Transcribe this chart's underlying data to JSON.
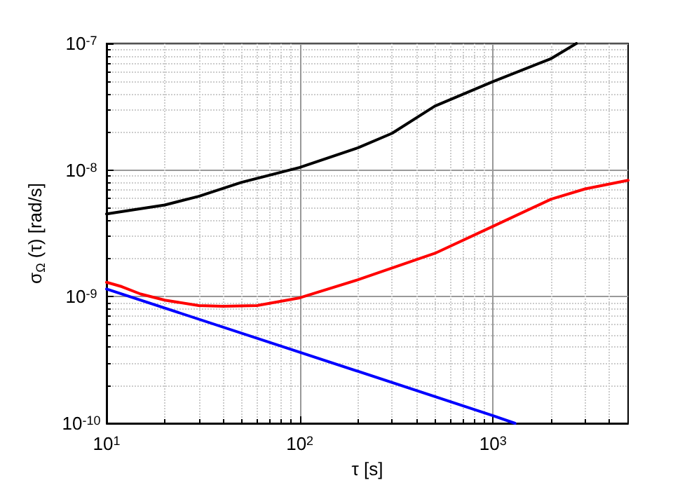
{
  "chart_data": {
    "type": "line",
    "xlabel": "τ [s]",
    "ylabel": "σ$_{Ω}$ (τ) [rad/s]",
    "log": "xy",
    "grid": true,
    "marker": "none",
    "line_style": "solid",
    "xlim": [
      10,
      5000
    ],
    "xticks": [
      {
        "value": 10,
        "label": "10$^{1}$"
      },
      {
        "value": 100,
        "label": "10$^{2}$"
      },
      {
        "value": 1000,
        "label": "10$^{3}$"
      }
    ],
    "ylim": [
      1e-10,
      1e-07
    ],
    "yticks": [
      {
        "value": 1e-10,
        "label": "10$^{-10}$"
      },
      {
        "value": 1e-09,
        "label": "10$^{-9}$"
      },
      {
        "value": 1e-08,
        "label": "10$^{-8}$"
      },
      {
        "value": 1e-07,
        "label": "10$^{-7}$"
      }
    ],
    "series": [
      {
        "color": "#000000",
        "x": [
          10,
          20,
          30,
          50,
          100,
          200,
          300,
          500,
          1000,
          2000,
          2700
        ],
        "values": [
          4.5e-09,
          5.3e-09,
          6.2e-09,
          8e-09,
          1.05e-08,
          1.5e-08,
          1.95e-08,
          3.2e-08,
          5e-08,
          7.6e-08,
          1e-07
        ]
      },
      {
        "color": "#ff0000",
        "x": [
          10,
          12,
          15,
          20,
          30,
          40,
          60,
          100,
          200,
          500,
          1000,
          2000,
          3000,
          5000
        ],
        "values": [
          1.3e-09,
          1.2e-09,
          1.05e-09,
          9.4e-10,
          8.5e-10,
          8.4e-10,
          8.5e-10,
          9.8e-10,
          1.36e-09,
          2.2e-09,
          3.6e-09,
          5.9e-09,
          7.1e-09,
          8.3e-09
        ]
      },
      {
        "color": "#0000ff",
        "x": [
          10,
          100,
          1000,
          1300
        ],
        "values": [
          1.15e-09,
          3.64e-10,
          1.15e-10,
          1e-10
        ]
      }
    ]
  }
}
